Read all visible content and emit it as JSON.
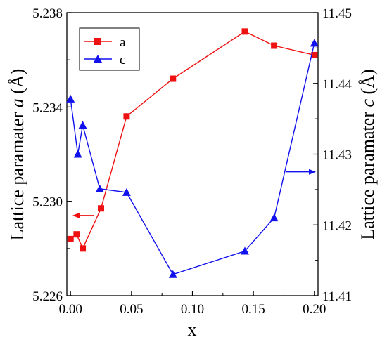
{
  "chart_data": {
    "type": "line",
    "xlabel": "x",
    "ylabel_left_prefix": "Lattice paramater ",
    "ylabel_left_var": "a",
    "ylabel_left_unit": "  (Å)",
    "ylabel_right_prefix": "Lattice paramater ",
    "ylabel_right_var": "c",
    "ylabel_right_unit": "  (Å)",
    "xlim": [
      -0.003,
      0.203
    ],
    "ylim_left": [
      5.226,
      5.238
    ],
    "ylim_right": [
      11.41,
      11.45
    ],
    "x_ticks": [
      "0.00",
      "0.05",
      "0.10",
      "0.15",
      "0.20"
    ],
    "x_tick_values": [
      0.0,
      0.05,
      0.1,
      0.15,
      0.2
    ],
    "y_left_ticks": [
      "5.226",
      "5.230",
      "5.234",
      "5.238"
    ],
    "y_left_tick_values": [
      5.226,
      5.23,
      5.234,
      5.238
    ],
    "y_right_ticks": [
      "11.41",
      "11.42",
      "11.43",
      "11.44",
      "11.45"
    ],
    "y_right_tick_values": [
      11.41,
      11.42,
      11.43,
      11.44,
      11.45
    ],
    "series": [
      {
        "name": "a",
        "axis": "left",
        "color": "#ee1111",
        "marker": "square",
        "x": [
          0.0,
          0.005,
          0.01,
          0.025,
          0.046,
          0.084,
          0.143,
          0.167,
          0.2
        ],
        "y": [
          5.2284,
          5.2286,
          5.228,
          5.2297,
          5.2336,
          5.2352,
          5.2372,
          5.2366,
          5.2362
        ]
      },
      {
        "name": "c",
        "axis": "right",
        "color": "#1111ee",
        "marker": "triangle",
        "x": [
          0.0,
          0.006,
          0.01,
          0.024,
          0.046,
          0.084,
          0.143,
          0.167,
          0.2
        ],
        "y": [
          11.4378,
          11.43,
          11.4341,
          11.4251,
          11.4246,
          11.413,
          11.4163,
          11.421,
          11.4457
        ]
      }
    ],
    "legend": "top-left",
    "arrows": [
      {
        "series": "a",
        "direction": "left",
        "color": "#ee1111"
      },
      {
        "series": "c",
        "direction": "right",
        "color": "#1111ee"
      }
    ]
  }
}
